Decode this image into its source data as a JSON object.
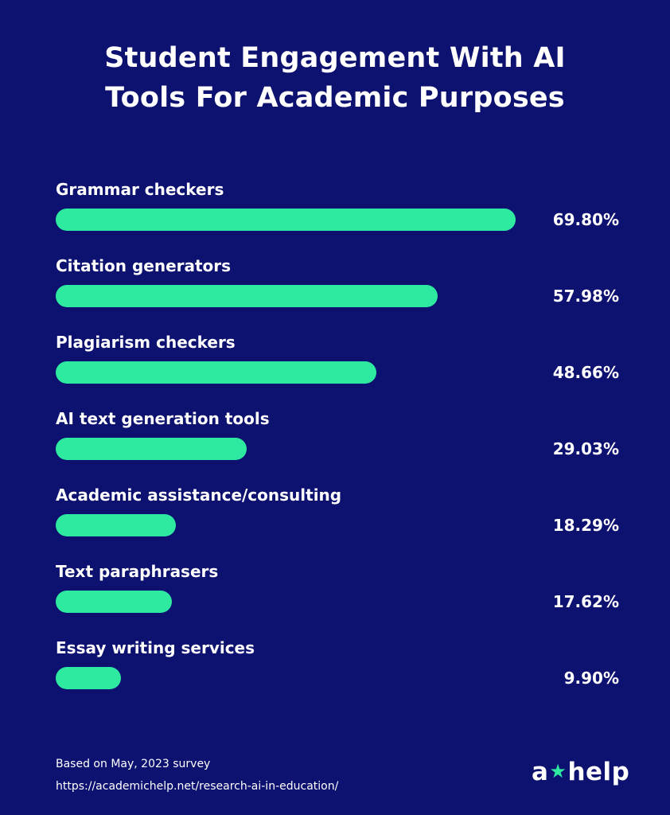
{
  "chart_data": {
    "type": "bar",
    "orientation": "horizontal",
    "title": "Student Engagement With AI Tools For Academic Purposes",
    "title_lines": [
      "Student Engagement With AI",
      "Tools For Academic Purposes"
    ],
    "categories": [
      "Grammar checkers",
      "Citation generators",
      "Plagiarism checkers",
      "AI text generation tools",
      "Academic assistance/consulting",
      "Text paraphrasers",
      "Essay writing services"
    ],
    "values": [
      69.8,
      57.98,
      48.66,
      29.03,
      18.29,
      17.62,
      9.9
    ],
    "value_labels": [
      "69.80%",
      "57.98%",
      "48.66%",
      "29.03%",
      "18.29%",
      "17.62%",
      "9.90%"
    ],
    "xlim": [
      0,
      100
    ],
    "grid": false,
    "legend": "none"
  },
  "colors": {
    "background": "#0d1170",
    "bar": "#2eeaa1",
    "text": "#ffffff"
  },
  "footer": {
    "note": "Based on May, 2023 survey",
    "source": "https://academichelp.net/research-ai-in-education/"
  },
  "logo": {
    "left": "a",
    "star_icon": "star-icon",
    "right": "help"
  }
}
